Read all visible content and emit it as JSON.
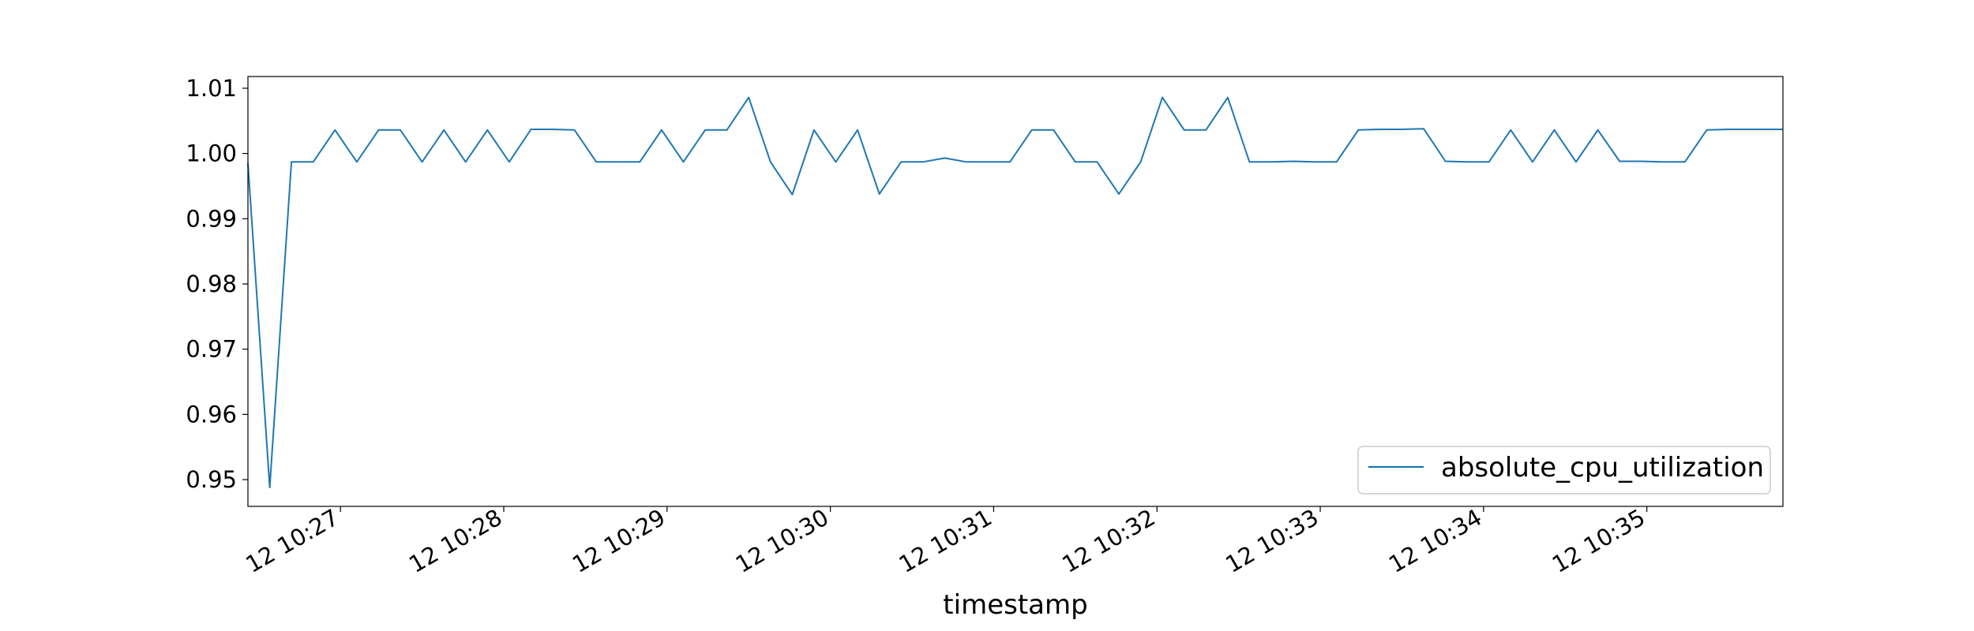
{
  "chart_data": {
    "type": "line",
    "title": "",
    "xlabel": "timestamp",
    "ylabel": "",
    "x_type": "time",
    "x_tick_labels": [
      "12 10:27",
      "12 10:28",
      "12 10:29",
      "12 10:30",
      "12 10:31",
      "12 10:32",
      "12 10:33",
      "12 10:34",
      "12 10:35"
    ],
    "x_ticks": [
      "10:27:00",
      "10:28:00",
      "10:29:00",
      "10:30:00",
      "10:31:00",
      "10:32:00",
      "10:33:00",
      "10:34:00",
      "10:35:00"
    ],
    "xlim": [
      "10:26:26",
      "10:35:50"
    ],
    "y_ticks": [
      0.95,
      0.96,
      0.97,
      0.98,
      0.99,
      1.0,
      1.01
    ],
    "ylim": [
      0.9459,
      1.0118
    ],
    "grid": false,
    "legend": {
      "position": "bottom-right",
      "entries": [
        "absolute_cpu_utilization"
      ]
    },
    "series": [
      {
        "name": "absolute_cpu_utilization",
        "color": "#1f77b4",
        "x": [
          "10:26:26",
          "10:26:34",
          "10:26:42",
          "10:26:50",
          "10:26:58",
          "10:27:06",
          "10:27:14",
          "10:27:22",
          "10:27:30",
          "10:27:38",
          "10:27:46",
          "10:27:54",
          "10:28:02",
          "10:28:10",
          "10:28:18",
          "10:28:26",
          "10:28:34",
          "10:28:42",
          "10:28:50",
          "10:28:58",
          "10:29:06",
          "10:29:14",
          "10:29:22",
          "10:29:30",
          "10:29:38",
          "10:29:46",
          "10:29:54",
          "10:30:02",
          "10:30:10",
          "10:30:18",
          "10:30:26",
          "10:30:34",
          "10:30:42",
          "10:30:50",
          "10:30:58",
          "10:31:06",
          "10:31:14",
          "10:31:22",
          "10:31:30",
          "10:31:38",
          "10:31:46",
          "10:31:54",
          "10:32:02",
          "10:32:10",
          "10:32:18",
          "10:32:26",
          "10:32:34",
          "10:32:42",
          "10:32:50",
          "10:32:58",
          "10:33:06",
          "10:33:14",
          "10:33:22",
          "10:33:30",
          "10:33:38",
          "10:33:46",
          "10:33:54",
          "10:34:02",
          "10:34:10",
          "10:34:18",
          "10:34:26",
          "10:34:34",
          "10:34:42",
          "10:34:50",
          "10:34:58",
          "10:35:06",
          "10:35:14",
          "10:35:22",
          "10:35:30",
          "10:35:38",
          "10:35:50"
        ],
        "values": [
          0.9985,
          0.9488,
          0.9987,
          0.9987,
          1.0036,
          0.9987,
          1.0036,
          1.0036,
          0.9987,
          1.0036,
          0.9987,
          1.0036,
          0.9987,
          1.0037,
          1.0037,
          1.0036,
          0.9987,
          0.9987,
          0.9987,
          1.0036,
          0.9987,
          1.0036,
          1.0036,
          1.0086,
          0.9987,
          0.9937,
          1.0036,
          0.9987,
          1.0036,
          0.9938,
          0.9987,
          0.9987,
          0.9993,
          0.9987,
          0.9987,
          0.9987,
          1.0036,
          1.0036,
          0.9987,
          0.9987,
          0.9938,
          0.9987,
          1.0086,
          1.0036,
          1.0036,
          1.0086,
          0.9987,
          0.9987,
          0.9988,
          0.9987,
          0.9987,
          1.0036,
          1.0037,
          1.0037,
          1.0038,
          0.9988,
          0.9987,
          0.9987,
          1.0036,
          0.9987,
          1.0036,
          0.9987,
          1.0036,
          0.9988,
          0.9988,
          0.9987,
          0.9987,
          1.0036,
          1.0037,
          1.0037,
          1.0037
        ]
      }
    ]
  }
}
